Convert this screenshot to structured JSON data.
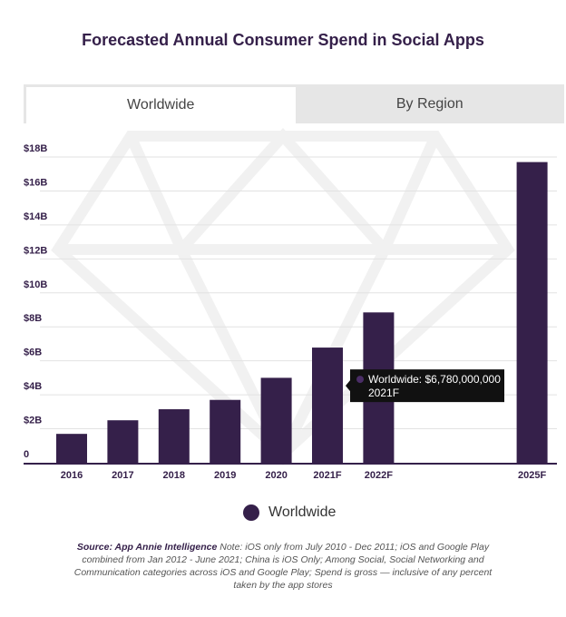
{
  "title": "Forecasted Annual Consumer Spend in Social Apps",
  "tabs": [
    {
      "label": "Worldwide",
      "active": true
    },
    {
      "label": "By Region",
      "active": false
    }
  ],
  "chart_data": {
    "type": "bar",
    "categories": [
      "2016",
      "2017",
      "2018",
      "2019",
      "2020",
      "2021F",
      "2022F",
      "2025F"
    ],
    "x": [
      2016,
      2017,
      2018,
      2019,
      2020,
      2021,
      2022,
      2025
    ],
    "series": [
      {
        "name": "Worldwide",
        "values": [
          1.7,
          2.5,
          3.15,
          3.7,
          5.0,
          6.78,
          8.85,
          17.7
        ]
      }
    ],
    "unit": "billion USD",
    "ylim": [
      0,
      18
    ],
    "yticks": [
      {
        "v": 0,
        "label": "0"
      },
      {
        "v": 2,
        "label": "$2B"
      },
      {
        "v": 4,
        "label": "$4B"
      },
      {
        "v": 6,
        "label": "$6B"
      },
      {
        "v": 8,
        "label": "$8B"
      },
      {
        "v": 10,
        "label": "$10B"
      },
      {
        "v": 12,
        "label": "$12B"
      },
      {
        "v": 14,
        "label": "$14B"
      },
      {
        "v": 16,
        "label": "$16B"
      },
      {
        "v": 18,
        "label": "$18B"
      }
    ],
    "grid": true,
    "legend_placement": "bottom",
    "bar_color": "#35204a",
    "tooltip": {
      "line1": "Worldwide: $6,780,000,000",
      "line2": "2021F",
      "category": "2021F"
    }
  },
  "legend": {
    "label": "Worldwide"
  },
  "note": {
    "source": "Source: App Annie Intelligence",
    "text": " Note: iOS only from July 2010 - Dec 2011; iOS and Google Play combined from Jan 2012 - June 2021; China is iOS Only; Among Social, Social Networking and Communication categories across iOS and Google Play; Spend is gross — inclusive of any percent taken by the app stores"
  }
}
